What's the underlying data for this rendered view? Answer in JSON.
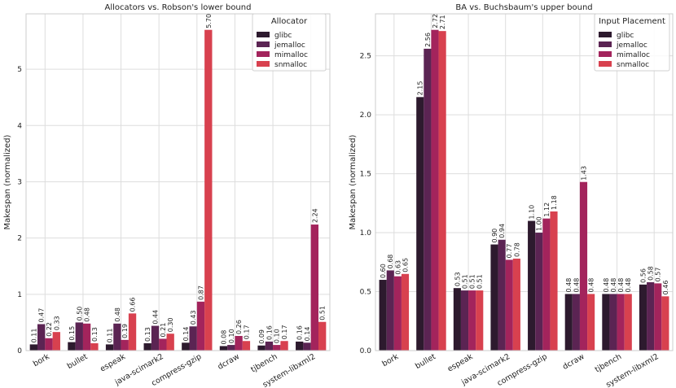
{
  "chart_data": [
    {
      "type": "bar",
      "title": "Allocators vs. Robson's lower bound",
      "xlabel": "",
      "ylabel": "Makespan (normalized)",
      "ylim": [
        0,
        5.985
      ],
      "yticks": [
        0,
        1,
        2,
        3,
        4,
        5
      ],
      "grid": true,
      "legend_title": "Allocator",
      "legend_position": "top-right",
      "categories": [
        "bork",
        "bullet",
        "espeak",
        "java-scimark2",
        "compress-gzip",
        "dcraw",
        "tjbench",
        "system-libxml2"
      ],
      "series": [
        {
          "name": "glibc",
          "values": [
            0.11,
            0.15,
            0.11,
            0.13,
            0.14,
            0.08,
            0.09,
            0.16
          ]
        },
        {
          "name": "jemalloc",
          "values": [
            0.47,
            0.5,
            0.48,
            0.44,
            0.43,
            0.1,
            0.16,
            0.14
          ]
        },
        {
          "name": "mimalloc",
          "values": [
            0.22,
            0.48,
            0.19,
            0.21,
            0.87,
            0.26,
            0.1,
            2.24
          ]
        },
        {
          "name": "snmalloc",
          "values": [
            0.33,
            0.13,
            0.66,
            0.3,
            5.7,
            0.17,
            0.17,
            0.51
          ]
        }
      ]
    },
    {
      "type": "bar",
      "title": "BA vs. Buchsbaum's upper bound",
      "xlabel": "",
      "ylabel": "Makespan (normalized)",
      "ylim": [
        0,
        2.856
      ],
      "yticks": [
        0.0,
        0.5,
        1.0,
        1.5,
        2.0,
        2.5
      ],
      "grid": true,
      "legend_title": "Input Placement",
      "legend_position": "top-right",
      "categories": [
        "bork",
        "bullet",
        "espeak",
        "java-scimark2",
        "compress-gzip",
        "dcraw",
        "tjbench",
        "system-libxml2"
      ],
      "series": [
        {
          "name": "glibc",
          "values": [
            0.6,
            2.15,
            0.53,
            0.9,
            1.1,
            0.48,
            0.48,
            0.56
          ]
        },
        {
          "name": "jemalloc",
          "values": [
            0.68,
            2.56,
            0.51,
            0.94,
            1.0,
            0.48,
            0.48,
            0.58
          ]
        },
        {
          "name": "mimalloc",
          "values": [
            0.63,
            2.72,
            0.51,
            0.77,
            1.12,
            1.43,
            0.48,
            0.57
          ]
        },
        {
          "name": "snmalloc",
          "values": [
            0.65,
            2.71,
            0.51,
            0.78,
            1.18,
            0.48,
            0.48,
            0.46
          ]
        }
      ]
    }
  ],
  "colors": {
    "glibc": "#2d1a2e",
    "jemalloc": "#5b2453",
    "mimalloc": "#a3245c",
    "snmalloc": "#d8414f",
    "grid": "#dddddd",
    "frame": "#cccccc"
  }
}
